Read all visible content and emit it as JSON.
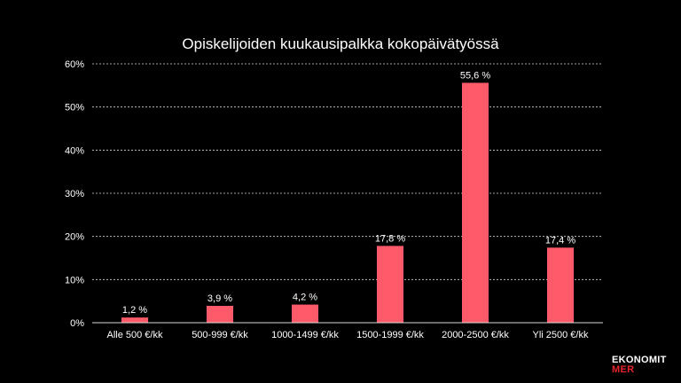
{
  "chart_data": {
    "type": "bar",
    "title": "Opiskelijoiden kuukausipalkka kokopäivätyössä",
    "categories": [
      "Alle 500 €/kk",
      "500-999 €/kk",
      "1000-1499 €/kk",
      "1500-1999 €/kk",
      "2000-2500 €/kk",
      "Yli 2500 €/kk"
    ],
    "values": [
      1.2,
      3.9,
      4.2,
      17.8,
      55.6,
      17.4
    ],
    "data_labels": [
      "1,2 %",
      "3,9 %",
      "4,2 %",
      "17,8 %",
      "55,6 %",
      "17,4 %"
    ],
    "ylim": [
      0,
      60
    ],
    "yticks": [
      0,
      10,
      20,
      30,
      40,
      50,
      60
    ],
    "ytick_labels": [
      "0%",
      "10%",
      "20%",
      "30%",
      "40%",
      "50%",
      "60%"
    ],
    "grid": true,
    "bar_color": "#ff5a6a",
    "legend": "none"
  },
  "logo": {
    "line1": "EKONOMIT",
    "line2": "MER"
  }
}
